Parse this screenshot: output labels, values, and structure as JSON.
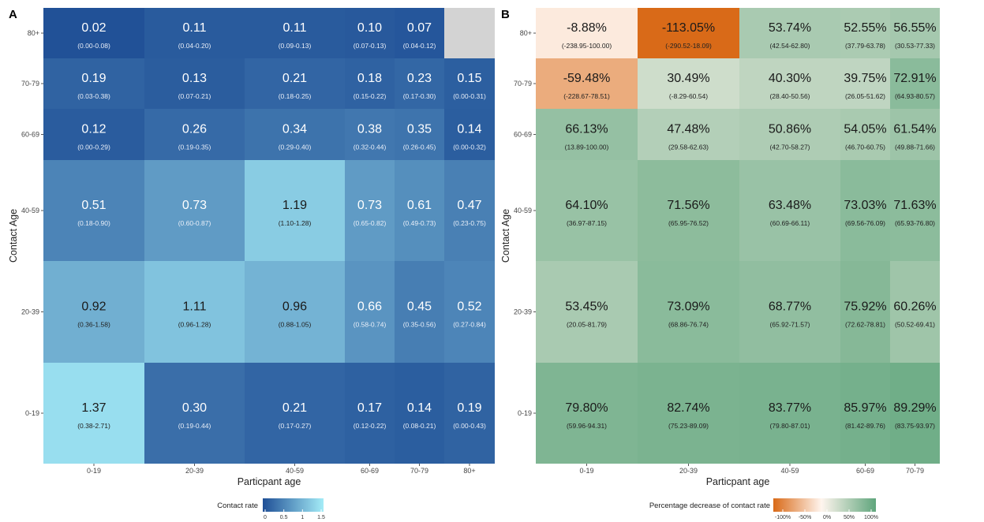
{
  "chart_data": [
    {
      "panel_label": "A",
      "type": "heatmap",
      "xlabel": "Particpant age",
      "ylabel": "Contact Age",
      "x_categories": [
        "0-19",
        "20-39",
        "40-59",
        "60-69",
        "70-79",
        "80+"
      ],
      "y_categories": [
        "80+",
        "70-79",
        "60-69",
        "40-59",
        "20-39",
        "0-19"
      ],
      "values": [
        [
          0.02,
          0.11,
          0.11,
          0.1,
          0.07,
          null
        ],
        [
          0.19,
          0.13,
          0.21,
          0.18,
          0.23,
          0.15
        ],
        [
          0.12,
          0.26,
          0.34,
          0.38,
          0.35,
          0.14
        ],
        [
          0.51,
          0.73,
          1.19,
          0.73,
          0.61,
          0.47
        ],
        [
          0.92,
          1.11,
          0.96,
          0.66,
          0.45,
          0.52
        ],
        [
          1.37,
          0.3,
          0.21,
          0.17,
          0.14,
          0.19
        ]
      ],
      "labels": [
        [
          "0.02",
          "0.11",
          "0.11",
          "0.10",
          "0.07",
          ""
        ],
        [
          "0.19",
          "0.13",
          "0.21",
          "0.18",
          "0.23",
          "0.15"
        ],
        [
          "0.12",
          "0.26",
          "0.34",
          "0.38",
          "0.35",
          "0.14"
        ],
        [
          "0.51",
          "0.73",
          "1.19",
          "0.73",
          "0.61",
          "0.47"
        ],
        [
          "0.92",
          "1.11",
          "0.96",
          "0.66",
          "0.45",
          "0.52"
        ],
        [
          "1.37",
          "0.30",
          "0.21",
          "0.17",
          "0.14",
          "0.19"
        ]
      ],
      "ci_labels": [
        [
          "(0.00-0.08)",
          "(0.04-0.20)",
          "(0.09-0.13)",
          "(0.07-0.13)",
          "(0.04-0.12)",
          ""
        ],
        [
          "(0.03-0.38)",
          "(0.07-0.21)",
          "(0.18-0.25)",
          "(0.15-0.22)",
          "(0.17-0.30)",
          "(0.00-0.31)"
        ],
        [
          "(0.00-0.29)",
          "(0.19-0.35)",
          "(0.29-0.40)",
          "(0.32-0.44)",
          "(0.26-0.45)",
          "(0.00-0.32)"
        ],
        [
          "(0.18-0.90)",
          "(0.60-0.87)",
          "(1.10-1.28)",
          "(0.65-0.82)",
          "(0.49-0.73)",
          "(0.23-0.75)"
        ],
        [
          "(0.36-1.58)",
          "(0.96-1.28)",
          "(0.88-1.05)",
          "(0.58-0.74)",
          "(0.35-0.56)",
          "(0.27-0.84)"
        ],
        [
          "(0.38-2.71)",
          "(0.19-0.44)",
          "(0.17-0.27)",
          "(0.12-0.22)",
          "(0.08-0.21)",
          "(0.00-0.43)"
        ]
      ],
      "legend": {
        "title": "Contact rate",
        "ticks": [
          "0",
          "0.5",
          "1",
          "1.5"
        ],
        "tick_values": [
          0,
          0.5,
          1,
          1.5
        ],
        "range": [
          0,
          1.5
        ],
        "low_color": "#1f4f96",
        "high_color": "#a4ecf7",
        "missing_color": "#d3d3d3"
      }
    },
    {
      "panel_label": "B",
      "type": "heatmap",
      "xlabel": "Particpant age",
      "ylabel": "Contact Age",
      "x_categories": [
        "0-19",
        "20-39",
        "40-59",
        "60-69",
        "70-79"
      ],
      "y_categories": [
        "80+",
        "70-79",
        "60-69",
        "40-59",
        "20-39",
        "0-19"
      ],
      "values": [
        [
          -8.88,
          -113.05,
          53.74,
          52.55,
          56.55
        ],
        [
          -59.48,
          30.49,
          40.3,
          39.75,
          72.91
        ],
        [
          66.13,
          47.48,
          50.86,
          54.05,
          61.54
        ],
        [
          64.1,
          71.56,
          63.48,
          73.03,
          71.63
        ],
        [
          53.45,
          73.09,
          68.77,
          75.92,
          60.26
        ],
        [
          79.8,
          82.74,
          83.77,
          85.97,
          89.29
        ]
      ],
      "labels": [
        [
          "-8.88%",
          "-113.05%",
          "53.74%",
          "52.55%",
          "56.55%"
        ],
        [
          "-59.48%",
          "30.49%",
          "40.30%",
          "39.75%",
          "72.91%"
        ],
        [
          "66.13%",
          "47.48%",
          "50.86%",
          "54.05%",
          "61.54%"
        ],
        [
          "64.10%",
          "71.56%",
          "63.48%",
          "73.03%",
          "71.63%"
        ],
        [
          "53.45%",
          "73.09%",
          "68.77%",
          "75.92%",
          "60.26%"
        ],
        [
          "79.80%",
          "82.74%",
          "83.77%",
          "85.97%",
          "89.29%"
        ]
      ],
      "ci_labels": [
        [
          "(-238.95-100.00)",
          "(-290.52-18.09)",
          "(42.54-62.80)",
          "(37.79-63.78)",
          "(30.53-77.33)"
        ],
        [
          "(-228.67-78.51)",
          "(-8.29-60.54)",
          "(28.40-50.56)",
          "(26.05-51.62)",
          "(64.93-80.57)"
        ],
        [
          "(13.89-100.00)",
          "(29.58-62.63)",
          "(42.70-58.27)",
          "(46.70-60.75)",
          "(49.88-71.66)"
        ],
        [
          "(36.97-87.15)",
          "(65.95-76.52)",
          "(60.69-66.11)",
          "(69.56-76.09)",
          "(65.93-76.80)"
        ],
        [
          "(20.05-81.79)",
          "(68.86-76.74)",
          "(65.92-71.57)",
          "(72.62-78.81)",
          "(50.52-69.41)"
        ],
        [
          "(59.96-94.31)",
          "(75.23-89.09)",
          "(79.80-87.01)",
          "(81.42-89.76)",
          "(83.75-93.97)"
        ]
      ],
      "legend": {
        "title": "Percentage decrease of contact rate",
        "ticks": [
          "-100%",
          "-50%",
          "0%",
          "50%",
          "100%"
        ],
        "tick_values": [
          -100,
          -50,
          0,
          50,
          100
        ],
        "range": [
          -113.05,
          100
        ],
        "low_color": "#d96a18",
        "mid_color": "#fff5ee",
        "high_color": "#5fa57c"
      }
    }
  ]
}
